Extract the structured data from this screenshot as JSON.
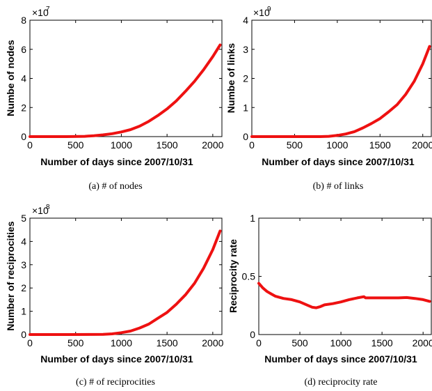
{
  "colors": {
    "series": "#ee1111",
    "axis": "#000000",
    "background": "#ffffff"
  },
  "chart_data": [
    {
      "id": "a",
      "type": "line",
      "caption": "(a)  # of nodes",
      "xlabel": "Number of days since 2007/10/31",
      "ylabel": "Numbe of nodes",
      "xlim": [
        0,
        2100
      ],
      "ylim": [
        0,
        8
      ],
      "xticks": [
        0,
        500,
        1000,
        1500,
        2000
      ],
      "yticks": [
        0,
        2,
        4,
        6,
        8
      ],
      "exponent_base": "×10",
      "exponent": "7",
      "grid": false,
      "series": [
        {
          "x": [
            0,
            200,
            400,
            600,
            700,
            800,
            900,
            1000,
            1100,
            1200,
            1300,
            1400,
            1500,
            1600,
            1700,
            1800,
            1900,
            2000,
            2080
          ],
          "y": [
            0,
            0,
            0,
            0.02,
            0.06,
            0.12,
            0.2,
            0.32,
            0.48,
            0.72,
            1.05,
            1.45,
            1.9,
            2.45,
            3.1,
            3.8,
            4.6,
            5.5,
            6.3
          ]
        }
      ]
    },
    {
      "id": "b",
      "type": "line",
      "caption": "(b)  # of links",
      "xlabel": "Number of days since 2007/10/31",
      "ylabel": "Numbe of links",
      "xlim": [
        0,
        2100
      ],
      "ylim": [
        0,
        4
      ],
      "xticks": [
        0,
        500,
        1000,
        1500,
        2000
      ],
      "yticks": [
        0,
        1,
        2,
        3,
        4
      ],
      "exponent_base": "×10",
      "exponent": "9",
      "grid": false,
      "series": [
        {
          "x": [
            0,
            400,
            800,
            900,
            1000,
            1100,
            1200,
            1300,
            1400,
            1500,
            1600,
            1700,
            1800,
            1900,
            2000,
            2080
          ],
          "y": [
            0,
            0,
            0,
            0.01,
            0.04,
            0.09,
            0.17,
            0.3,
            0.45,
            0.62,
            0.85,
            1.1,
            1.45,
            1.9,
            2.5,
            3.1
          ]
        }
      ]
    },
    {
      "id": "c",
      "type": "line",
      "caption": "(c)  # of reciprocities",
      "xlabel": "Number of days since 2007/10/31",
      "ylabel": "Number of reciprocities",
      "xlim": [
        0,
        2100
      ],
      "ylim": [
        0,
        5
      ],
      "xticks": [
        0,
        500,
        1000,
        1500,
        2000
      ],
      "yticks": [
        0,
        1,
        2,
        3,
        4,
        5
      ],
      "exponent_base": "×10",
      "exponent": "8",
      "grid": false,
      "series": [
        {
          "x": [
            0,
            400,
            800,
            900,
            1000,
            1100,
            1200,
            1300,
            1400,
            1500,
            1600,
            1700,
            1800,
            1900,
            2000,
            2080
          ],
          "y": [
            0,
            0,
            0.01,
            0.03,
            0.08,
            0.15,
            0.28,
            0.45,
            0.7,
            0.95,
            1.3,
            1.7,
            2.2,
            2.85,
            3.65,
            4.45
          ]
        }
      ]
    },
    {
      "id": "d",
      "type": "line",
      "caption": "(d)  reciprocity rate",
      "xlabel": "Number of days since 2007/10/31",
      "ylabel": "Reciprocity rate",
      "xlim": [
        0,
        2100
      ],
      "ylim": [
        0,
        1
      ],
      "xticks": [
        0,
        500,
        1000,
        1500,
        2000
      ],
      "yticks": [
        0,
        0.5,
        1
      ],
      "ytick_labels": [
        "0",
        "0.5",
        "1"
      ],
      "exponent_base": "",
      "exponent": "",
      "grid": false,
      "series": [
        {
          "x": [
            0,
            50,
            100,
            150,
            200,
            300,
            400,
            500,
            600,
            650,
            700,
            750,
            800,
            900,
            1000,
            1100,
            1200,
            1280,
            1300,
            1400,
            1500,
            1600,
            1700,
            1800,
            1900,
            2000,
            2080
          ],
          "y": [
            0.44,
            0.4,
            0.37,
            0.35,
            0.33,
            0.31,
            0.3,
            0.28,
            0.25,
            0.235,
            0.23,
            0.24,
            0.255,
            0.265,
            0.28,
            0.3,
            0.315,
            0.325,
            0.315,
            0.315,
            0.315,
            0.315,
            0.315,
            0.318,
            0.31,
            0.3,
            0.285
          ]
        }
      ]
    }
  ]
}
